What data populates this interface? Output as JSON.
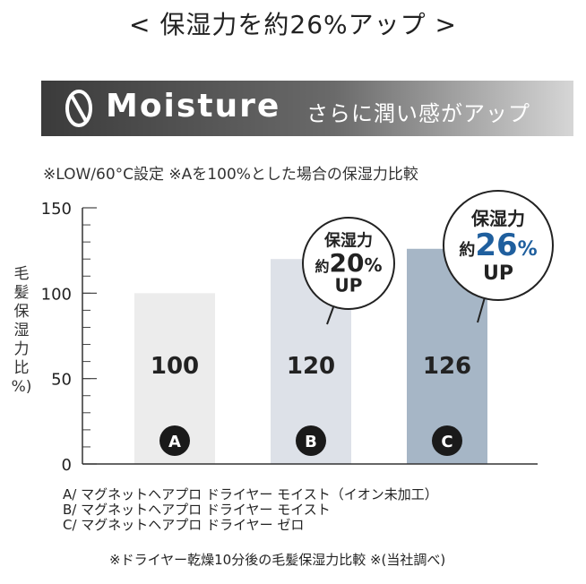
{
  "headline": "< 保湿力を約26%アップ >",
  "banner": {
    "word": "Moisture",
    "subtitle": "さらに潤い感がアップ"
  },
  "conditions": "※LOW/60°C設定 ※Aを100%とした場合の保湿力比較",
  "y_axis_label": [
    "毛",
    "髪",
    "保",
    "湿",
    "力",
    "比",
    "%)"
  ],
  "legend": [
    "A/ マグネットヘアプロ ドライヤー モイスト（イオン未加工）",
    "B/ マグネットヘアプロ ドライヤー モイスト",
    "C/ マグネットヘアプロ ドライヤー ゼロ"
  ],
  "footnote": "※ドライヤー乾燥10分後の毛髪保湿力比較 ※(当社調べ)",
  "callouts": [
    {
      "bar": 1,
      "line1": "保湿力",
      "prefix": "約",
      "value": "20",
      "unit": "%",
      "line3": "UP",
      "accent": "#222222"
    },
    {
      "bar": 2,
      "line1": "保湿力",
      "prefix": "約",
      "value": "26",
      "unit": "%",
      "line3": "UP",
      "accent": "#1f5f9e"
    }
  ],
  "chart_data": {
    "type": "bar",
    "categories": [
      "A",
      "B",
      "C"
    ],
    "values": [
      100,
      120,
      126
    ],
    "value_labels": [
      "100",
      "120",
      "126"
    ],
    "bar_colors": [
      "#ececec",
      "#dde1e8",
      "#a6b6c6"
    ],
    "ylim": [
      0,
      150
    ],
    "yticks": [
      0,
      50,
      100,
      150
    ],
    "ytick_labels": [
      "0",
      "50",
      "100",
      "150"
    ],
    "minor_tick_step": 10
  }
}
